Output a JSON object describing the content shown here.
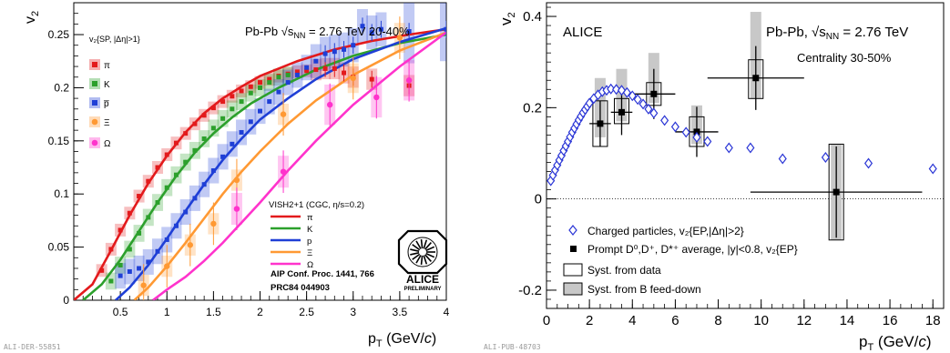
{
  "chart_data": [
    {
      "type": "scatter",
      "xlabel_main": "p",
      "xlabel_sub": "T",
      "xlabel_unit": "(GeV/",
      "xlabel_unit_c": "c",
      "xlabel_unit_close": ")",
      "ylabel_main": "v",
      "ylabel_sub": "2",
      "xlim": [
        0,
        4
      ],
      "ylim": [
        0,
        0.28
      ],
      "xticks": [
        0.5,
        1,
        1.5,
        2,
        2.5,
        3,
        3.5,
        4
      ],
      "xtick_labels": [
        "0.5",
        "1",
        "1.5",
        "2",
        "2.5",
        "3",
        "3.5",
        "4"
      ],
      "yticks": [
        0,
        0.05,
        0.1,
        0.15,
        0.2,
        0.25
      ],
      "ytick_labels": [
        "0",
        "0.05",
        "0.1",
        "0.15",
        "0.2",
        "0.25"
      ],
      "system_text": "Pb-Pb √s",
      "system_sub": "NN",
      "system_rest": "= 2.76 TeV 20-40%",
      "legend_title": "v₂{SP, |Δη|>1}",
      "model_title": "VISH2+1 (CGC, η/s=0.2)",
      "ref1": "AIP Conf. Proc. 1441, 766",
      "ref2": "PRC84 044903",
      "logo_text": "ALICE",
      "logo_sub": "PRELIMINARY",
      "tag": "ALI-DER-55851",
      "series": [
        {
          "name": "π",
          "color": "#e31a1c",
          "marker": "square",
          "x": [
            0.3,
            0.4,
            0.5,
            0.6,
            0.7,
            0.8,
            0.9,
            1.0,
            1.1,
            1.2,
            1.3,
            1.4,
            1.5,
            1.6,
            1.7,
            1.8,
            1.9,
            2.0,
            2.1,
            2.2,
            2.3,
            2.4,
            2.5,
            2.6,
            2.7,
            2.8,
            2.9,
            3.0,
            3.2,
            3.6
          ],
          "y": [
            0.028,
            0.048,
            0.066,
            0.082,
            0.098,
            0.112,
            0.125,
            0.137,
            0.148,
            0.157,
            0.166,
            0.174,
            0.181,
            0.187,
            0.192,
            0.197,
            0.201,
            0.205,
            0.208,
            0.211,
            0.213,
            0.215,
            0.216,
            0.217,
            0.218,
            0.218,
            0.214,
            0.21,
            0.208,
            0.202
          ]
        },
        {
          "name": "K",
          "color": "#2ca02c",
          "marker": "square",
          "x": [
            0.4,
            0.5,
            0.6,
            0.7,
            0.8,
            0.9,
            1.0,
            1.1,
            1.2,
            1.3,
            1.4,
            1.5,
            1.6,
            1.7,
            1.8,
            1.9,
            2.0,
            2.1,
            2.2,
            2.3
          ],
          "y": [
            0.018,
            0.033,
            0.048,
            0.063,
            0.078,
            0.092,
            0.106,
            0.118,
            0.13,
            0.141,
            0.152,
            0.162,
            0.171,
            0.18,
            0.187,
            0.195,
            0.2,
            0.205,
            0.21,
            0.212
          ]
        },
        {
          "name": "p̅",
          "color": "#1f3fd6",
          "marker": "square",
          "x": [
            0.5,
            0.6,
            0.7,
            0.8,
            0.9,
            1.0,
            1.1,
            1.2,
            1.3,
            1.4,
            1.5,
            1.6,
            1.7,
            1.8,
            1.9,
            2.0,
            2.1,
            2.2,
            2.3,
            2.4,
            2.5,
            2.6,
            2.7,
            2.8,
            2.9,
            3.0,
            3.1,
            3.2,
            3.3,
            3.6,
            4.0
          ],
          "y": [
            0.023,
            0.027,
            0.03,
            0.036,
            0.046,
            0.057,
            0.07,
            0.083,
            0.096,
            0.109,
            0.122,
            0.135,
            0.147,
            0.158,
            0.168,
            0.178,
            0.187,
            0.196,
            0.205,
            0.212,
            0.219,
            0.225,
            0.232,
            0.234,
            0.236,
            0.24,
            0.258,
            0.252,
            0.255,
            0.253,
            0.255
          ]
        },
        {
          "name": "Ξ",
          "color": "#ff9933",
          "marker": "circle",
          "x": [
            0.75,
            1.0,
            1.25,
            1.5,
            1.75,
            2.25,
            3.0,
            3.5
          ],
          "y": [
            0.014,
            0.032,
            0.052,
            0.072,
            0.113,
            0.175,
            0.209,
            0.247
          ]
        },
        {
          "name": "Ω",
          "color": "#ff33cc",
          "marker": "circle",
          "x": [
            1.75,
            2.25,
            2.75,
            3.25,
            3.6
          ],
          "y": [
            0.086,
            0.121,
            0.184,
            0.191,
            0.207
          ]
        }
      ],
      "model": [
        {
          "name": "π",
          "color": "#e31a1c",
          "x": [
            0.0,
            0.2,
            0.4,
            0.6,
            0.8,
            1.0,
            1.2,
            1.4,
            1.6,
            1.8,
            2.0,
            2.4,
            2.8,
            3.2,
            3.6,
            4.0
          ],
          "y": [
            0.0,
            0.015,
            0.047,
            0.08,
            0.11,
            0.136,
            0.158,
            0.176,
            0.19,
            0.201,
            0.211,
            0.225,
            0.236,
            0.244,
            0.25,
            0.255
          ]
        },
        {
          "name": "K",
          "color": "#2ca02c",
          "x": [
            0.1,
            0.3,
            0.5,
            0.7,
            0.9,
            1.1,
            1.3,
            1.5,
            1.7,
            1.9,
            2.2,
            2.6,
            3.0,
            3.5,
            4.0
          ],
          "y": [
            0.0,
            0.015,
            0.038,
            0.065,
            0.092,
            0.117,
            0.139,
            0.157,
            0.172,
            0.185,
            0.2,
            0.217,
            0.23,
            0.242,
            0.25
          ]
        },
        {
          "name": "p",
          "color": "#1f3fd6",
          "x": [
            0.45,
            0.6,
            0.8,
            1.0,
            1.2,
            1.4,
            1.6,
            1.8,
            2.0,
            2.3,
            2.6,
            3.0,
            3.5,
            4.0
          ],
          "y": [
            0.0,
            0.012,
            0.033,
            0.058,
            0.084,
            0.109,
            0.132,
            0.152,
            0.17,
            0.19,
            0.208,
            0.227,
            0.243,
            0.256
          ]
        },
        {
          "name": "Ξ",
          "color": "#ff9933",
          "x": [
            0.65,
            0.8,
            1.0,
            1.2,
            1.4,
            1.6,
            1.8,
            2.0,
            2.3,
            2.6,
            3.0,
            3.5,
            4.0
          ],
          "y": [
            0.0,
            0.012,
            0.032,
            0.054,
            0.077,
            0.1,
            0.121,
            0.14,
            0.166,
            0.188,
            0.212,
            0.235,
            0.252
          ]
        },
        {
          "name": "Ω",
          "color": "#ff33cc",
          "x": [
            0.85,
            1.0,
            1.2,
            1.4,
            1.6,
            1.8,
            2.0,
            2.3,
            2.6,
            3.0,
            3.5,
            4.0
          ],
          "y": [
            0.0,
            0.01,
            0.022,
            0.037,
            0.054,
            0.073,
            0.092,
            0.122,
            0.15,
            0.184,
            0.22,
            0.252
          ]
        }
      ]
    },
    {
      "type": "scatter",
      "xlabel_main": "p",
      "xlabel_sub": "T",
      "xlabel_unit": "(GeV/",
      "xlabel_unit_c": "c",
      "xlabel_unit_close": ")",
      "ylabel_main": "v",
      "ylabel_sub": "2",
      "xlim": [
        0,
        18.5
      ],
      "ylim": [
        -0.24,
        0.43
      ],
      "xticks": [
        0,
        2,
        4,
        6,
        8,
        10,
        12,
        14,
        16,
        18
      ],
      "xtick_labels": [
        "0",
        "2",
        "4",
        "6",
        "8",
        "10",
        "12",
        "14",
        "16",
        "18"
      ],
      "yticks": [
        -0.2,
        0,
        0.2,
        0.4
      ],
      "ytick_labels": [
        "-0.2",
        "0",
        "0.2",
        "0.4"
      ],
      "experiment": "ALICE",
      "system_text": "Pb-Pb, √s",
      "system_sub": "NN",
      "system_rest": "= 2.76 TeV",
      "centrality": "Centrality 30-50%",
      "legend": [
        "Charged particles, v₂{EP,|Δη|>2}",
        "Prompt D⁰,D⁺, D*⁺ average, |y|<0.8, v₂{EP}",
        "Syst. from data",
        "Syst. from B feed-down"
      ],
      "tag": "ALI-PUB-48703",
      "series": [
        {
          "name": "Charged particles",
          "color": "#2b36d6",
          "marker": "open-diamond",
          "x": [
            0.2,
            0.3,
            0.4,
            0.5,
            0.6,
            0.7,
            0.8,
            0.9,
            1.0,
            1.1,
            1.2,
            1.3,
            1.4,
            1.5,
            1.6,
            1.7,
            1.8,
            1.9,
            2.0,
            2.2,
            2.4,
            2.6,
            2.8,
            3.0,
            3.25,
            3.5,
            3.75,
            4.0,
            4.25,
            4.5,
            4.75,
            5.0,
            5.5,
            6.0,
            6.5,
            7.0,
            7.5,
            8.5,
            9.5,
            11.0,
            13.0,
            15.0,
            18.0
          ],
          "y": [
            0.04,
            0.052,
            0.063,
            0.074,
            0.085,
            0.095,
            0.106,
            0.116,
            0.126,
            0.136,
            0.146,
            0.155,
            0.164,
            0.173,
            0.181,
            0.189,
            0.196,
            0.203,
            0.21,
            0.22,
            0.228,
            0.235,
            0.238,
            0.241,
            0.24,
            0.238,
            0.233,
            0.226,
            0.218,
            0.208,
            0.197,
            0.188,
            0.172,
            0.158,
            0.146,
            0.135,
            0.126,
            0.112,
            0.112,
            0.088,
            0.091,
            0.078,
            0.066
          ]
        },
        {
          "name": "Prompt D average",
          "color": "#000000",
          "marker": "square",
          "points": [
            {
              "x": 2.5,
              "y": 0.165,
              "xerr": 0.5,
              "stat": 0.05,
              "data_sys": [
                0.115,
                0.215
              ],
              "feed_sys": [
                0.135,
                0.265
              ]
            },
            {
              "x": 3.5,
              "y": 0.19,
              "xerr": 0.5,
              "stat": 0.05,
              "data_sys": [
                0.165,
                0.22
              ],
              "feed_sys": [
                0.17,
                0.285
              ]
            },
            {
              "x": 5.0,
              "y": 0.23,
              "xerr": 1.0,
              "stat": 0.055,
              "data_sys": [
                0.205,
                0.255
              ],
              "feed_sys": [
                0.21,
                0.32
              ]
            },
            {
              "x": 7.0,
              "y": 0.147,
              "xerr": 1.0,
              "stat": 0.055,
              "data_sys": [
                0.115,
                0.18
              ],
              "feed_sys": [
                0.12,
                0.205
              ]
            },
            {
              "x": 9.75,
              "y": 0.265,
              "xerr": 2.25,
              "stat": 0.07,
              "data_sys": [
                0.22,
                0.305
              ],
              "feed_sys": [
                0.22,
                0.41
              ]
            },
            {
              "x": 13.5,
              "y": 0.015,
              "xerr": 4.0,
              "stat": 0.1,
              "data_sys": [
                -0.09,
                0.12
              ],
              "feed_sys": [
                -0.09,
                0.12
              ]
            }
          ]
        }
      ]
    }
  ]
}
